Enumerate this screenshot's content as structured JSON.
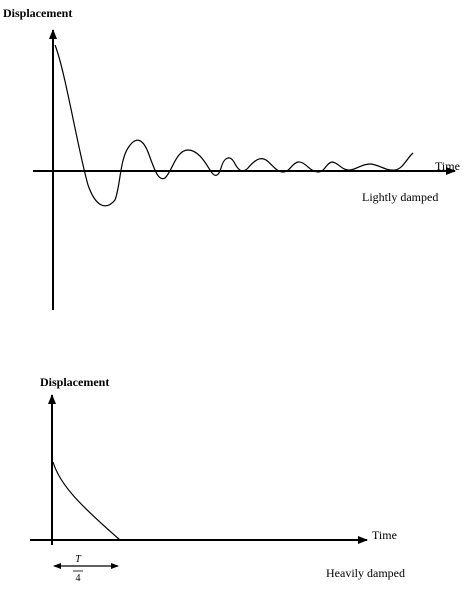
{
  "top": {
    "y_label": "Displacement",
    "x_label": "Time",
    "caption": "Lightly damped"
  },
  "bottom": {
    "y_label": "Displacement",
    "x_label": "Time",
    "caption": "Heavily damped",
    "interval": {
      "numerator": "T",
      "denominator": "4"
    }
  }
}
